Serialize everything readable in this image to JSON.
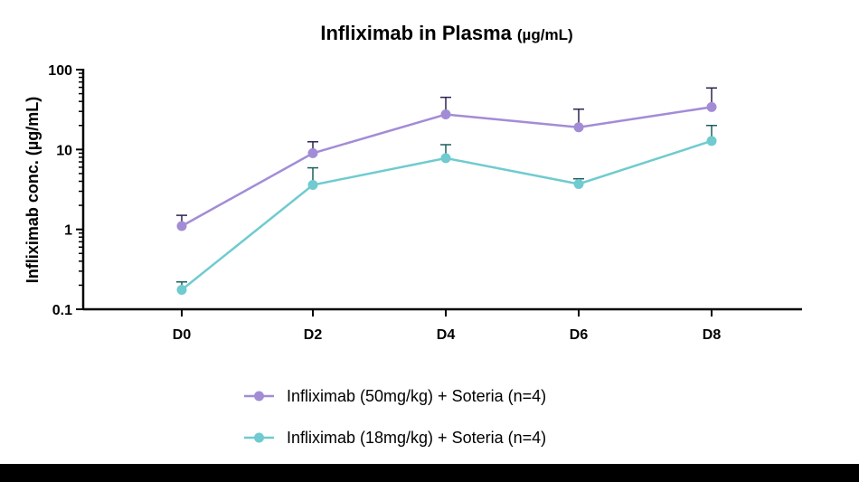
{
  "chart_data": {
    "type": "line",
    "title": "Infliximab in Plasma",
    "title_unit": "(µg/mL)",
    "xlabel": "",
    "ylabel": "Infliximab conc. (µg/mL)",
    "y_scale": "log",
    "ylim": [
      0.1,
      100
    ],
    "y_ticks": [
      0.1,
      1,
      10,
      100
    ],
    "y_tick_labels": [
      "0.1",
      "1",
      "10",
      "100"
    ],
    "categories": [
      "D0",
      "D2",
      "D4",
      "D6",
      "D8"
    ],
    "grid": false,
    "legend_position": "bottom",
    "series": [
      {
        "name": "Infliximab (50mg/kg) + Soteria (n=4)",
        "color": "#a38cd6",
        "error_color": "#2e2350",
        "values": [
          1.1,
          9.0,
          27.5,
          19.0,
          34.0
        ],
        "error_upper": [
          1.5,
          12.5,
          45.0,
          32.0,
          59.0
        ]
      },
      {
        "name": "Infliximab (18mg/kg) + Soteria (n=4)",
        "color": "#6fcbcf",
        "error_color": "#1e5d5d",
        "values": [
          0.175,
          3.6,
          7.8,
          3.7,
          12.8
        ],
        "error_upper": [
          0.22,
          5.9,
          11.5,
          4.3,
          20.0
        ]
      }
    ]
  }
}
